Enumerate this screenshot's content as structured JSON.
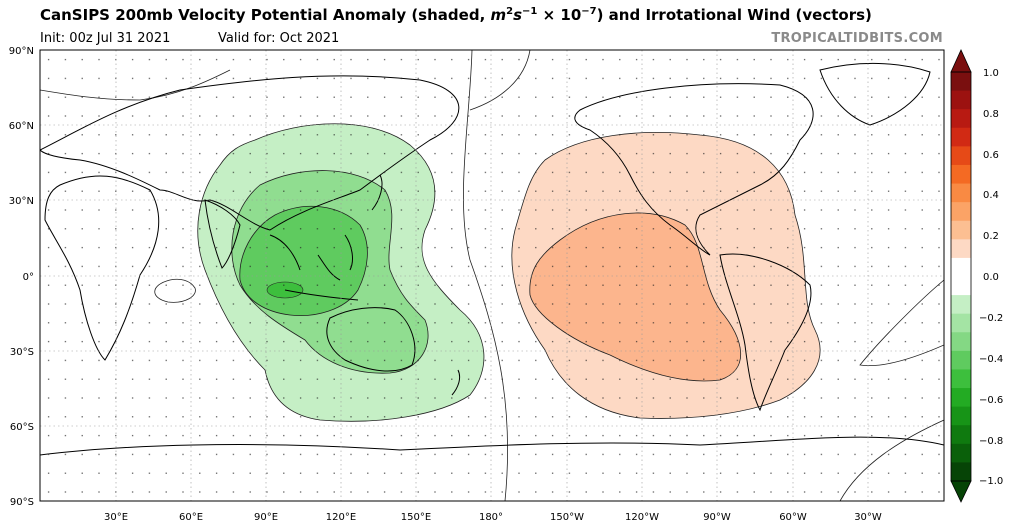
{
  "header": {
    "title_main": "CanSIPS 200mb Velocity Potential Anomaly (shaded, ",
    "title_units_m": "m",
    "title_units_m_exp": "2",
    "title_units_s": "s",
    "title_units_s_exp": "−1",
    "title_units_mult": " × 10",
    "title_units_10_exp": "−7",
    "title_tail": ") and Irrotational Wind (vectors)",
    "init": "Init: 00z Jul 31 2021",
    "valid": "Valid for: Oct 2021",
    "brand": "TROPICALTIDBITS.COM"
  },
  "map": {
    "lat_labels": [
      "90°N",
      "60°N",
      "30°N",
      "0°",
      "30°S",
      "60°S",
      "90°S"
    ],
    "lon_labels": [
      "30°E",
      "60°E",
      "90°E",
      "120°E",
      "150°E",
      "180°",
      "150°W",
      "120°W",
      "90°W",
      "60°W",
      "30°W"
    ],
    "fields": {
      "negative_anomaly_region": "Indo-Pacific / Maritime Continent",
      "positive_anomaly_region": "Eastern Pacific / Americas"
    }
  },
  "colorbar": {
    "ticks": [
      "1.0",
      "0.8",
      "0.6",
      "0.4",
      "0.2",
      "0.0",
      "−0.2",
      "−0.4",
      "−0.6",
      "−0.8",
      "−1.0"
    ],
    "colors": [
      "#7a0f0f",
      "#9c1210",
      "#b81a12",
      "#d12a14",
      "#e64a17",
      "#f46a23",
      "#f98a43",
      "#fba366",
      "#fcbf92",
      "#fdd9c4",
      "#ffffff",
      "#ffffff",
      "#c5efc5",
      "#a4e4a4",
      "#84d884",
      "#5fcb5f",
      "#3dbf3d",
      "#23ab23",
      "#179417",
      "#0f7a0f",
      "#0a600a",
      "#064406"
    ]
  }
}
